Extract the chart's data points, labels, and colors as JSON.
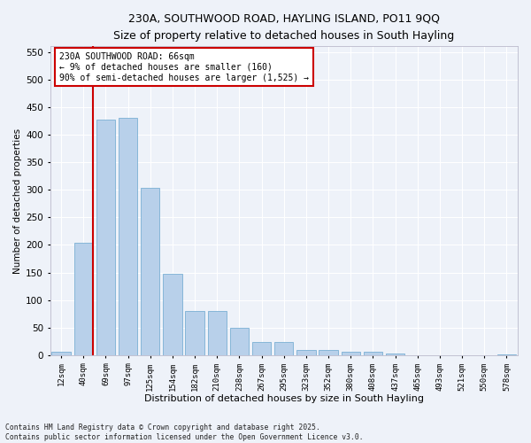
{
  "title_line1": "230A, SOUTHWOOD ROAD, HAYLING ISLAND, PO11 9QQ",
  "title_line2": "Size of property relative to detached houses in South Hayling",
  "xlabel": "Distribution of detached houses by size in South Hayling",
  "ylabel": "Number of detached properties",
  "bar_labels": [
    "12sqm",
    "40sqm",
    "69sqm",
    "97sqm",
    "125sqm",
    "154sqm",
    "182sqm",
    "210sqm",
    "238sqm",
    "267sqm",
    "295sqm",
    "323sqm",
    "352sqm",
    "380sqm",
    "408sqm",
    "437sqm",
    "465sqm",
    "493sqm",
    "521sqm",
    "550sqm",
    "578sqm"
  ],
  "bar_values": [
    7,
    204,
    428,
    430,
    303,
    147,
    81,
    81,
    50,
    24,
    24,
    10,
    10,
    6,
    6,
    3,
    0,
    0,
    0,
    0,
    2
  ],
  "bar_color": "#b8d0ea",
  "bar_edge_color": "#7aafd4",
  "vline_pos": 1.42,
  "vline_color": "#cc0000",
  "annotation_text": "230A SOUTHWOOD ROAD: 66sqm\n← 9% of detached houses are smaller (160)\n90% of semi-detached houses are larger (1,525) →",
  "annotation_box_color": "#ffffff",
  "annotation_box_edge": "#cc0000",
  "ylim": [
    0,
    560
  ],
  "yticks": [
    0,
    50,
    100,
    150,
    200,
    250,
    300,
    350,
    400,
    450,
    500,
    550
  ],
  "footer_line1": "Contains HM Land Registry data © Crown copyright and database right 2025.",
  "footer_line2": "Contains public sector information licensed under the Open Government Licence v3.0.",
  "background_color": "#eef2f9",
  "grid_color": "#ffffff"
}
